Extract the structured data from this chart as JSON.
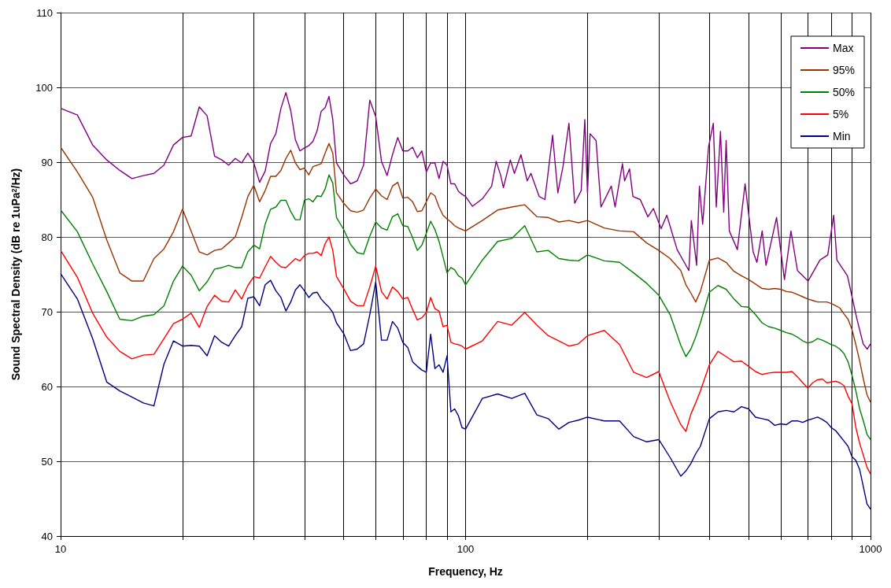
{
  "chart_data": {
    "type": "line",
    "xlabel": "Frequency, Hz",
    "ylabel": "Sound Spectral Density (dB re 1uPa$^{2}$/Hz)",
    "log": "x",
    "grid": true,
    "legend": "top right",
    "xlim": [
      10,
      1000
    ],
    "xticks": [
      10,
      {
        "value": 20,
        "label": null
      },
      {
        "value": 30,
        "label": null
      },
      {
        "value": 40,
        "label": null
      },
      {
        "value": 50,
        "label": null
      },
      {
        "value": 60,
        "label": null
      },
      {
        "value": 70,
        "label": null
      },
      {
        "value": 80,
        "label": null
      },
      {
        "value": 90,
        "label": null
      },
      100,
      {
        "value": 200,
        "label": null
      },
      {
        "value": 300,
        "label": null
      },
      {
        "value": 400,
        "label": null
      },
      {
        "value": 500,
        "label": null
      },
      {
        "value": 600,
        "label": null
      },
      {
        "value": 700,
        "label": null
      },
      {
        "value": 800,
        "label": null
      },
      {
        "value": 900,
        "label": null
      },
      1000
    ],
    "ylim": [
      40,
      110
    ],
    "yticks": [
      40,
      50,
      60,
      70,
      80,
      90,
      100,
      110
    ],
    "x": [
      10,
      11,
      12,
      13,
      14,
      15,
      16,
      17,
      18,
      19,
      20,
      21,
      22,
      23,
      24,
      25,
      26,
      27,
      28,
      29,
      30,
      31,
      32,
      33,
      34,
      35,
      36,
      37,
      38,
      39,
      40,
      41,
      42,
      43,
      44,
      45,
      46,
      47,
      48,
      50,
      52,
      54,
      56,
      58,
      60,
      62,
      64,
      66,
      68,
      70,
      72,
      74,
      76,
      78,
      80,
      82,
      84,
      86,
      88,
      90,
      92,
      94,
      96,
      98,
      100,
      110,
      120,
      130,
      140,
      150,
      160,
      170,
      180,
      190,
      200,
      220,
      240,
      260,
      280,
      300,
      320,
      340,
      350,
      360,
      370,
      380,
      400,
      420,
      440,
      460,
      480,
      500,
      520,
      540,
      560,
      580,
      600,
      620,
      640,
      660,
      680,
      700,
      720,
      740,
      760,
      780,
      800,
      820,
      840,
      860,
      880,
      900,
      920,
      940,
      960,
      980,
      1000
    ],
    "series": [
      {
        "name": "Max",
        "color": "#800080",
        "x": [
          10,
          11,
          12,
          13,
          14,
          15,
          16,
          17,
          18,
          19,
          20,
          21,
          22,
          23,
          24,
          25,
          26,
          27,
          28,
          29,
          30,
          31,
          32,
          33,
          34,
          35,
          36,
          37,
          38,
          39,
          40,
          41,
          42,
          43,
          44,
          45,
          46,
          47,
          48,
          50,
          52,
          54,
          56,
          58,
          60,
          62,
          64,
          66,
          68,
          70,
          72,
          74,
          76,
          78,
          80,
          82,
          84,
          86,
          88,
          90,
          92,
          94,
          96,
          98,
          100,
          104,
          110,
          116,
          119,
          122,
          124,
          129,
          132,
          137,
          142,
          145,
          152,
          157,
          164,
          169,
          174,
          180,
          186,
          193,
          197,
          200,
          203,
          210,
          216,
          229,
          234,
          244,
          247,
          254,
          259,
          270,
          282,
          291,
          304,
          314,
          333,
          356,
          361,
          372,
          378,
          385,
          398,
          409,
          416,
          426,
          434,
          440,
          448,
          469,
          490,
          513,
          524,
          540,
          552,
          586,
          613,
          636,
          660,
          701,
          750,
          784,
          811,
          826,
          877,
          924,
          959,
          981,
          1000
        ],
        "values": [
          97.2,
          96.3,
          92.3,
          90.3,
          88.9,
          87.8,
          88.2,
          88.5,
          89.6,
          92.3,
          93.3,
          93.5,
          97.4,
          96.2,
          90.8,
          90.3,
          89.6,
          90.5,
          89.9,
          91.2,
          89.9,
          87.3,
          88.8,
          92.5,
          93.8,
          97.2,
          99.3,
          96.9,
          93.0,
          91.5,
          91.9,
          92.2,
          92.8,
          94.2,
          96.8,
          97.3,
          98.8,
          95.7,
          89.9,
          88.3,
          87.1,
          87.5,
          89.6,
          98.3,
          96.1,
          90.1,
          88.2,
          91.0,
          93.3,
          91.5,
          91.5,
          92.0,
          90.6,
          91.5,
          88.7,
          89.9,
          89.9,
          87.8,
          90.1,
          89.6,
          87.1,
          87.1,
          86.1,
          85.7,
          85.4,
          84.1,
          85.1,
          86.8,
          90.1,
          88.3,
          86.6,
          90.3,
          88.5,
          91.0,
          87.5,
          88.5,
          85.4,
          85.0,
          93.6,
          85.9,
          89.4,
          95.2,
          84.5,
          86.2,
          95.7,
          85.9,
          93.8,
          92.9,
          84.0,
          86.8,
          84.0,
          89.8,
          87.5,
          89.1,
          85.4,
          85.0,
          82.7,
          83.8,
          81.1,
          82.9,
          78.3,
          75.5,
          82.2,
          76.2,
          86.8,
          81.7,
          92.0,
          95.2,
          84.0,
          94.1,
          83.3,
          92.9,
          80.8,
          78.3,
          87.1,
          78.0,
          76.6,
          80.8,
          76.2,
          82.6,
          74.3,
          80.8,
          75.5,
          74.1,
          76.9,
          77.6,
          82.9,
          76.9,
          74.8,
          69.2,
          65.7,
          65.0,
          65.7
        ]
      },
      {
        "name": "95%",
        "color": "#993300",
        "values": [
          92.0,
          88.7,
          85.3,
          79.6,
          75.2,
          74.1,
          74.1,
          77.1,
          78.4,
          80.7,
          83.7,
          80.8,
          78.0,
          77.6,
          78.2,
          78.4,
          79.2,
          80.0,
          82.6,
          85.4,
          86.9,
          84.7,
          86.2,
          88.1,
          88.1,
          88.9,
          90.5,
          91.6,
          89.9,
          89.0,
          89.2,
          88.3,
          89.4,
          89.6,
          89.8,
          91.2,
          92.5,
          91.2,
          85.9,
          84.5,
          83.5,
          83.3,
          83.6,
          85.2,
          86.4,
          85.5,
          85.0,
          86.8,
          87.3,
          85.2,
          85.3,
          84.7,
          83.4,
          83.5,
          84.7,
          85.9,
          85.5,
          84.0,
          82.9,
          82.4,
          82.0,
          81.5,
          81.2,
          81.0,
          80.8,
          82.2,
          83.6,
          84.0,
          84.3,
          82.7,
          82.6,
          82.0,
          82.2,
          81.9,
          82.2,
          81.2,
          80.8,
          80.7,
          79.2,
          78.2,
          77.1,
          75.5,
          73.6,
          72.5,
          71.3,
          72.7,
          76.9,
          77.2,
          76.6,
          75.4,
          74.8,
          74.3,
          73.7,
          73.1,
          73.0,
          73.1,
          73.0,
          72.7,
          72.6,
          72.3,
          72.0,
          71.7,
          71.5,
          71.3,
          71.3,
          71.3,
          71.1,
          70.8,
          70.5,
          69.7,
          69.0,
          67.6,
          65.6,
          63.4,
          61.0,
          58.9,
          57.9
        ]
      },
      {
        "name": "50%",
        "color": "#008000",
        "values": [
          83.6,
          80.7,
          76.4,
          72.7,
          69.0,
          68.8,
          69.4,
          69.6,
          70.8,
          74.1,
          76.1,
          74.9,
          72.8,
          74.0,
          75.7,
          75.9,
          76.2,
          75.9,
          75.9,
          78.0,
          78.9,
          78.4,
          81.7,
          83.7,
          84.0,
          84.9,
          84.9,
          83.4,
          82.3,
          82.3,
          84.9,
          85.1,
          84.7,
          85.5,
          85.4,
          86.4,
          88.3,
          87.2,
          82.6,
          81.0,
          79.0,
          77.9,
          77.7,
          80.1,
          82.0,
          81.2,
          80.9,
          82.7,
          83.1,
          81.5,
          81.4,
          79.9,
          78.2,
          78.9,
          80.5,
          82.1,
          81.0,
          79.4,
          77.3,
          75.2,
          75.9,
          75.6,
          74.8,
          74.5,
          73.6,
          76.9,
          79.4,
          79.8,
          81.5,
          78.0,
          78.2,
          77.1,
          76.9,
          76.8,
          77.6,
          76.8,
          76.6,
          75.2,
          73.8,
          72.2,
          69.6,
          65.5,
          64.0,
          65.0,
          66.6,
          68.5,
          72.6,
          73.5,
          73.0,
          71.7,
          70.7,
          70.6,
          69.6,
          68.5,
          68.0,
          67.8,
          67.5,
          67.2,
          67.0,
          66.6,
          66.1,
          65.8,
          66.0,
          66.4,
          66.2,
          65.9,
          65.6,
          65.4,
          65.0,
          64.4,
          63.3,
          61.5,
          59.4,
          57.0,
          55.4,
          53.6,
          52.9
        ]
      },
      {
        "name": "5%",
        "color": "#ff0000",
        "values": [
          78.2,
          74.6,
          69.8,
          66.6,
          64.7,
          63.7,
          64.2,
          64.3,
          66.4,
          68.4,
          69.0,
          69.8,
          67.9,
          70.7,
          72.2,
          71.4,
          71.3,
          72.9,
          71.7,
          73.5,
          74.7,
          74.5,
          76.0,
          77.4,
          76.6,
          76.0,
          75.9,
          76.5,
          77.1,
          76.8,
          77.5,
          77.8,
          77.8,
          78.0,
          77.5,
          79.1,
          80.0,
          78.2,
          74.7,
          73.1,
          71.4,
          70.8,
          70.8,
          73.3,
          76.1,
          72.7,
          71.7,
          73.3,
          72.7,
          71.7,
          71.9,
          70.3,
          68.9,
          69.2,
          69.9,
          71.9,
          70.4,
          70.1,
          68.0,
          68.2,
          65.9,
          65.7,
          65.6,
          65.4,
          65.0,
          66.1,
          68.7,
          68.2,
          69.9,
          68.2,
          66.8,
          66.1,
          65.4,
          65.7,
          66.8,
          67.5,
          65.6,
          61.9,
          61.2,
          62.0,
          58.0,
          54.9,
          54.0,
          56.3,
          57.8,
          59.4,
          62.9,
          64.7,
          64.0,
          63.3,
          63.4,
          62.7,
          62.0,
          61.6,
          61.8,
          61.9,
          61.9,
          61.9,
          62.0,
          61.3,
          60.5,
          59.8,
          60.5,
          60.9,
          61.0,
          60.5,
          60.6,
          60.7,
          60.5,
          60.1,
          58.7,
          57.7,
          54.5,
          52.4,
          50.8,
          49.2,
          48.3
        ]
      },
      {
        "name": "Min",
        "color": "#000080",
        "values": [
          75.1,
          71.7,
          66.4,
          60.6,
          59.4,
          58.6,
          57.8,
          57.4,
          63.0,
          66.1,
          65.4,
          65.5,
          65.4,
          64.1,
          66.8,
          65.9,
          65.4,
          66.8,
          68.0,
          71.8,
          72.0,
          70.8,
          73.6,
          74.2,
          72.8,
          71.9,
          70.1,
          71.3,
          72.9,
          73.6,
          72.8,
          71.9,
          72.5,
          72.6,
          71.7,
          71.1,
          70.6,
          69.9,
          68.5,
          67.1,
          64.8,
          65.0,
          65.7,
          69.6,
          74.0,
          66.2,
          66.2,
          68.7,
          67.8,
          65.9,
          65.2,
          63.3,
          62.7,
          62.2,
          61.9,
          67.0,
          62.4,
          62.9,
          61.9,
          64.1,
          56.6,
          57.0,
          56.1,
          54.5,
          54.3,
          58.4,
          59.0,
          58.4,
          59.1,
          56.2,
          55.7,
          54.3,
          55.2,
          55.5,
          55.9,
          55.4,
          55.4,
          53.3,
          52.6,
          52.9,
          50.5,
          48.0,
          48.7,
          49.7,
          51.0,
          52.0,
          55.7,
          56.6,
          56.8,
          56.6,
          57.3,
          57.0,
          55.9,
          55.7,
          55.5,
          54.8,
          55.0,
          54.9,
          55.4,
          55.4,
          55.2,
          55.5,
          55.7,
          55.9,
          55.6,
          55.2,
          54.5,
          54.1,
          53.4,
          52.7,
          52.0,
          50.6,
          50.1,
          48.9,
          46.6,
          44.3,
          43.6
        ]
      }
    ]
  }
}
